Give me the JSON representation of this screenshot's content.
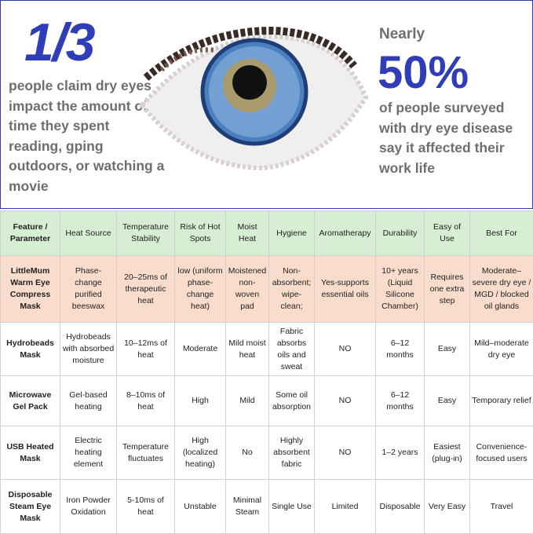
{
  "top": {
    "left_stat": "1/3",
    "left_text": "people claim dry eyes impact the amount of time they spent reading, gping outdoors, or watching a movie",
    "right_intro": "Nearly",
    "right_stat": "50%",
    "right_text": "of people surveyed with dry eye disease say it affected their work life"
  },
  "table": {
    "header": [
      "Feature / Parameter",
      "Heat Source",
      "Temperature Stability",
      "Risk of Hot Spots",
      "Moist Heat",
      "Hygiene",
      "Aromatherapy",
      "Durability",
      "Easy of Use",
      "Best For"
    ],
    "rows": [
      [
        "LittleMum Warm Eye Compress Mask",
        "Phase-change purified beeswax",
        "20–25ms of therapeutic heat",
        "low (uniform phase-change heat)",
        "Moistened non-woven pad",
        "Non-absorbent; wipe-clean;",
        "Yes-supports essential oils",
        "10+ years (Liquid Silicone Chamber)",
        "Requires one extra step",
        "Moderate–severe dry eye / MGD / blocked oil glands"
      ],
      [
        "Hydrobeads Mask",
        "Hydrobeads with absorbed moisture",
        "10–12ms of heat",
        "Moderate",
        "Mild moist heat",
        "Fabric absorbs oils and sweat",
        "NO",
        "6–12 months",
        "Easy",
        "Mild–moderate dry eye"
      ],
      [
        "Microwave Gel Pack",
        "Gel-based heating",
        "8–10ms of heat",
        "High",
        "Mild",
        "Some oil absorption",
        "NO",
        "6–12 months",
        "Easy",
        "Temporary relief"
      ],
      [
        "USB Heated Mask",
        "Electric heating element",
        "Temperature fluctuates",
        "High (localized heating)",
        "No",
        "Highly absorbent fabric",
        "NO",
        "1–2 years",
        "Easiest (plug-in)",
        "Convenience-focused users"
      ],
      [
        "Disposable Steam Eye Mask",
        "Iron Powder Oxidation",
        "5-10ms of heat",
        "Unstable",
        "Minimal Steam",
        "Single Use",
        "Limited",
        "Disposable",
        "Very Easy",
        "Travel"
      ]
    ]
  }
}
